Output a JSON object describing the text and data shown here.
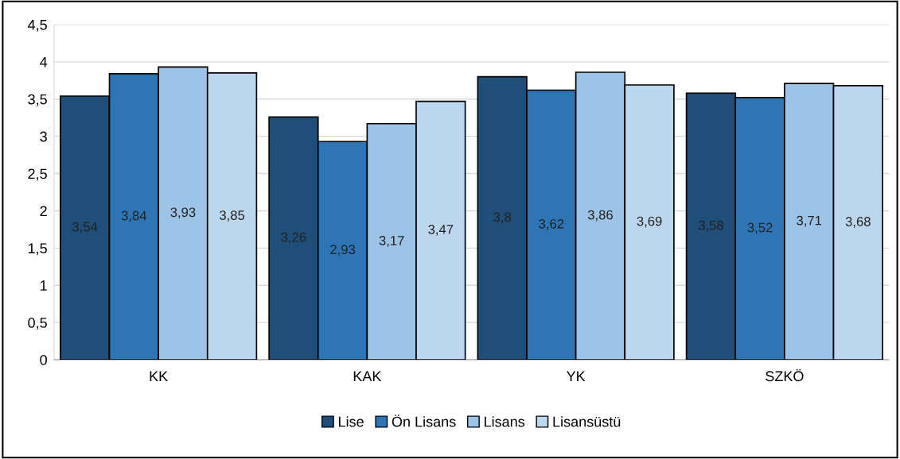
{
  "chart_data": {
    "type": "bar",
    "categories": [
      "KK",
      "KAK",
      "YK",
      "SZKÖ"
    ],
    "series": [
      {
        "name": "Lise",
        "color": "#1f4e79",
        "values": [
          3.54,
          3.26,
          3.8,
          3.58
        ],
        "value_labels": [
          "3,54",
          "3,26",
          "3,8",
          "3,58"
        ]
      },
      {
        "name": "Ön Lisans",
        "color": "#2e75b6",
        "values": [
          3.84,
          2.93,
          3.62,
          3.52
        ],
        "value_labels": [
          "3,84",
          "2,93",
          "3,62",
          "3,52"
        ]
      },
      {
        "name": "Lisans",
        "color": "#9dc3e6",
        "values": [
          3.93,
          3.17,
          3.86,
          3.71
        ],
        "value_labels": [
          "3,93",
          "3,17",
          "3,86",
          "3,71"
        ]
      },
      {
        "name": "Lisansüstü",
        "color": "#bdd7ee",
        "values": [
          3.85,
          3.47,
          3.69,
          3.68
        ],
        "value_labels": [
          "3,85",
          "3,47",
          "3,69",
          "3,68"
        ]
      }
    ],
    "ylim": [
      0,
      4.5
    ],
    "yticks": [
      0,
      {
        "value": 0.5,
        "label": "0,5"
      },
      1,
      {
        "value": 1.5,
        "label": "1,5"
      },
      2,
      {
        "value": 2.5,
        "label": "2,5"
      },
      3,
      {
        "value": 3.5,
        "label": "3,5"
      },
      4,
      {
        "value": 4.5,
        "label": "4,5"
      }
    ],
    "grid": "y",
    "legend": "bottom"
  }
}
